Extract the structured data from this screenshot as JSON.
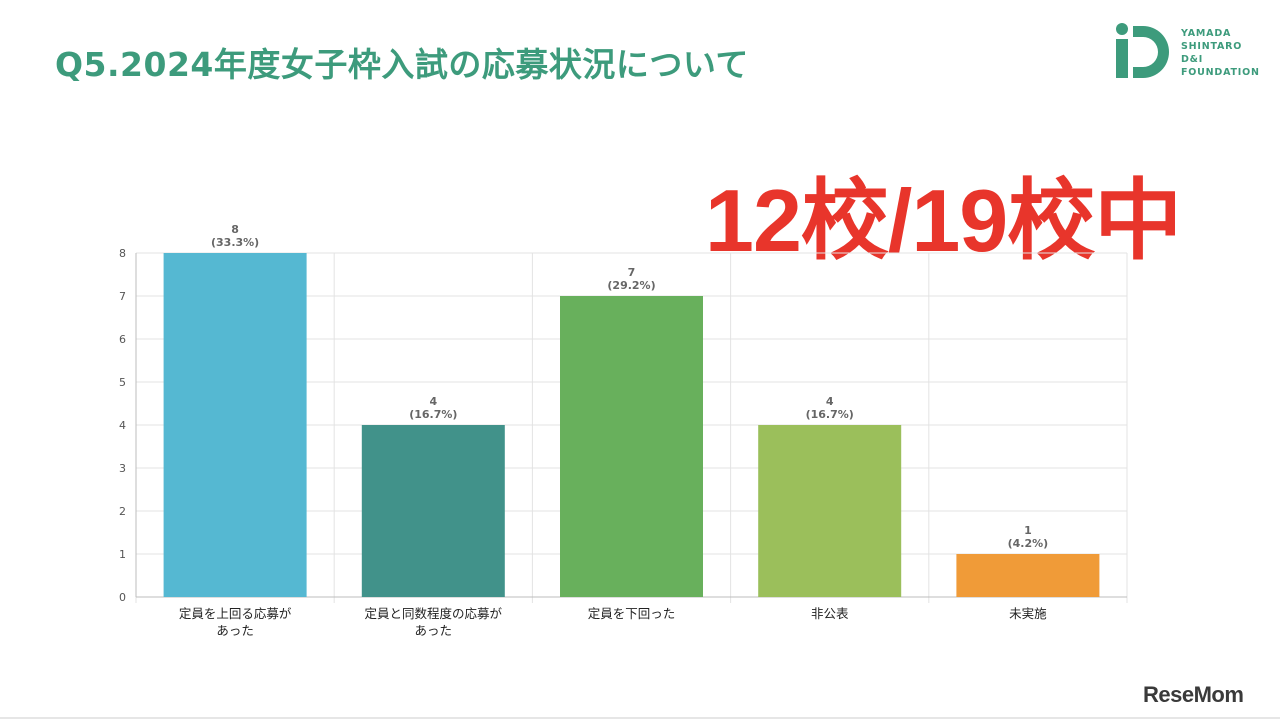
{
  "slide": {
    "title": "Q5.2024年度女子枠入試の応募状況について",
    "highlight": "12校/19校中"
  },
  "logo": {
    "mark": "iD",
    "lines": [
      "YAMADA",
      "SHINTARO",
      "D&I",
      "FOUNDATION"
    ],
    "color": "#3d9b7c"
  },
  "watermark": "ReseMom",
  "chart_data": {
    "type": "bar",
    "categories": [
      [
        "定員を上回る応募が",
        "あった"
      ],
      [
        "定員と同数程度の応募が",
        "あった"
      ],
      [
        "定員を下回った"
      ],
      [
        "非公表"
      ],
      [
        "未実施"
      ]
    ],
    "values": [
      8,
      4,
      7,
      4,
      1
    ],
    "value_labels": [
      "8",
      "4",
      "7",
      "4",
      "1"
    ],
    "percent_labels": [
      "(33.3%)",
      "(16.7%)",
      "(29.2%)",
      "(16.7%)",
      "(4.2%)"
    ],
    "colors": [
      "#55b8d2",
      "#41928a",
      "#68b05c",
      "#9bbf5b",
      "#f09b38"
    ],
    "yticks": [
      0,
      1,
      2,
      3,
      4,
      5,
      6,
      7,
      8
    ],
    "ylim": [
      0,
      8
    ],
    "grid": true,
    "title": "",
    "xlabel": "",
    "ylabel": ""
  }
}
